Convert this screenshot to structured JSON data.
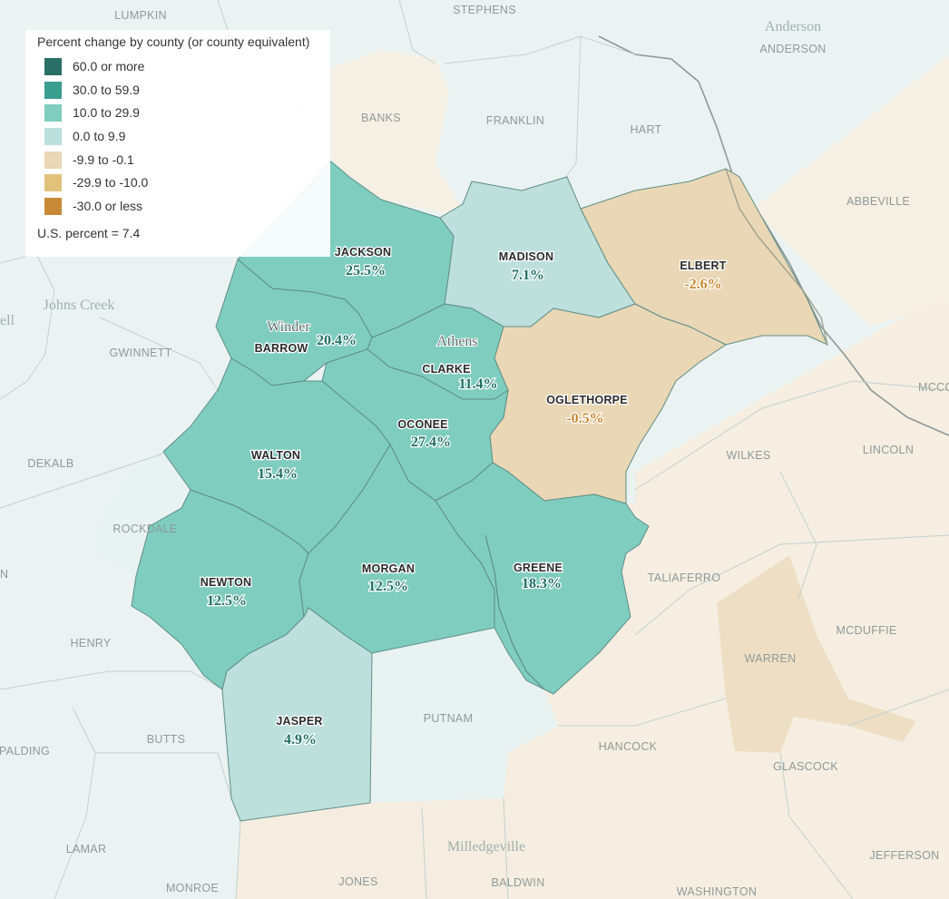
{
  "legend": {
    "title": "Percent change by county (or county equivalent)",
    "items": [
      {
        "label": "60.0 or more",
        "color": "#2a6f66"
      },
      {
        "label": "30.0 to 59.9",
        "color": "#3a9e8f"
      },
      {
        "label": "10.0 to 29.9",
        "color": "#7fcdbf"
      },
      {
        "label": "0.0 to 9.9",
        "color": "#bde0dc"
      },
      {
        "label": "-9.9 to -0.1",
        "color": "#e9d7b5"
      },
      {
        "label": "-29.9 to -10.0",
        "color": "#e2c27a"
      },
      {
        "label": "-30.0 or less",
        "color": "#c98a38"
      }
    ],
    "us_note": "U.S. percent = 7.4"
  },
  "counties": [
    {
      "name": "JACKSON",
      "value": "25.5%",
      "fill": "#7fcdbf",
      "text_color": "#1f6f63"
    },
    {
      "name": "MADISON",
      "value": "7.1%",
      "fill": "#bde0dc",
      "text_color": "#1f6f63"
    },
    {
      "name": "ELBERT",
      "value": "-2.6%",
      "fill": "#e9d7b5",
      "text_color": "#c8862e"
    },
    {
      "name": "BARROW",
      "value": "20.4%",
      "fill": "#7fcdbf",
      "text_color": "#1f6f63"
    },
    {
      "name": "CLARKE",
      "value": "11.4%",
      "fill": "#7fcdbf",
      "text_color": "#1f6f63"
    },
    {
      "name": "OGLETHORPE",
      "value": "-0.5%",
      "fill": "#e9d7b5",
      "text_color": "#c8862e"
    },
    {
      "name": "OCONEE",
      "value": "27.4%",
      "fill": "#7fcdbf",
      "text_color": "#1f6f63"
    },
    {
      "name": "WALTON",
      "value": "15.4%",
      "fill": "#7fcdbf",
      "text_color": "#1f6f63"
    },
    {
      "name": "NEWTON",
      "value": "12.5%",
      "fill": "#7fcdbf",
      "text_color": "#1f6f63"
    },
    {
      "name": "MORGAN",
      "value": "12.5%",
      "fill": "#7fcdbf",
      "text_color": "#1f6f63"
    },
    {
      "name": "GREENE",
      "value": "18.3%",
      "fill": "#7fcdbf",
      "text_color": "#1f6f63"
    },
    {
      "name": "JASPER",
      "value": "4.9%",
      "fill": "#bde0dc",
      "text_color": "#1f6f63"
    }
  ],
  "cities": {
    "winder": "Winder",
    "athens": "Athens",
    "johns_creek": "Johns Creek",
    "anderson": "Anderson",
    "milledgeville": "Milledgeville",
    "ell": "ell"
  },
  "background_labels": {
    "lumpkin": "LUMPKIN",
    "stephens": "STEPHENS",
    "anderson": "ANDERSON",
    "banks": "BANKS",
    "franklin": "FRANKLIN",
    "hart": "HART",
    "abbeville": "ABBEVILLE",
    "gwinnett": "GWINNETT",
    "dekalb": "DEKALB",
    "rockdale": "ROCKDALE",
    "henry": "HENRY",
    "butts": "BUTTS",
    "spalding": "PALDING",
    "lamar": "LAMAR",
    "monroe": "MONROE",
    "jones": "JONES",
    "baldwin": "BALDWIN",
    "washington": "WASHINGTON",
    "jefferson": "JEFFERSON",
    "glascock": "GLASCOCK",
    "hancock": "HANCOCK",
    "putnam": "PUTNAM",
    "warren": "WARREN",
    "mcduffie": "MCDUFFIE",
    "taliaferro": "TALIAFERRO",
    "wilkes": "WILKES",
    "lincoln": "LINCOLN",
    "mcc": "MCCO",
    "n_edge": "N"
  }
}
